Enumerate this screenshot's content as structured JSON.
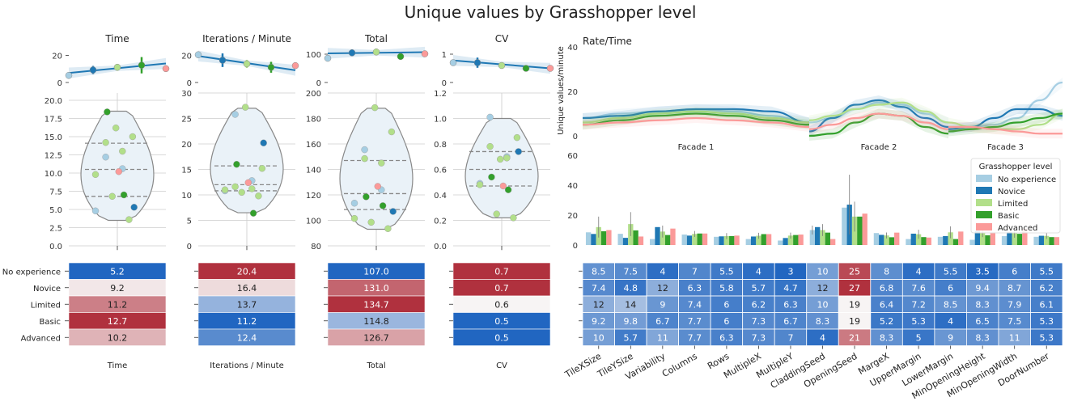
{
  "figure": {
    "suptitle": "Unique values by Grasshopper level"
  },
  "levels": [
    "No experience",
    "Novice",
    "Limited",
    "Basic",
    "Advanced"
  ],
  "colors": {
    "No experience": "#a6cee3",
    "Novice": "#1f78b4",
    "Limited": "#b2df8a",
    "Basic": "#33a02c",
    "Advanced": "#fb9a99",
    "heat_low": "#2166c1",
    "heat_mid": "#f7f4f4",
    "heat_high": "#b0313e"
  },
  "chart_data": [
    {
      "id": "time",
      "type": "line",
      "title": "Time",
      "xlabel": "Time",
      "top_ylim": [
        0,
        25
      ],
      "top_yticks": [
        "0",
        "20"
      ],
      "top_points": [
        5.2,
        9.2,
        11.2,
        12.7,
        10.2
      ],
      "top_errors": [
        0,
        3,
        2.5,
        6,
        0
      ],
      "trend": [
        7.0,
        14.0
      ],
      "violin_ylim": [
        0,
        21
      ],
      "violin_yticks": [
        "0.0",
        "2.5",
        "5.0",
        "7.5",
        "10.0",
        "12.5",
        "15.0",
        "17.5",
        "20.0"
      ],
      "violin_ytick_values": [
        0,
        2.5,
        5,
        7.5,
        10,
        12.5,
        15,
        17.5,
        20
      ],
      "violin_range": [
        3.5,
        18.5
      ],
      "quartiles": [
        6.8,
        10.5,
        14.1
      ],
      "strip": [
        {
          "level": "No experience",
          "values": [
            4.8,
            10.6,
            12.2
          ]
        },
        {
          "level": "Novice",
          "values": [
            5.3
          ]
        },
        {
          "level": "Limited",
          "values": [
            3.6,
            6.8,
            9.8,
            13.0,
            14.2,
            15.0,
            16.2
          ]
        },
        {
          "level": "Basic",
          "values": [
            7.0,
            18.4
          ]
        },
        {
          "level": "Advanced",
          "values": [
            10.2
          ]
        }
      ],
      "heat_values": [
        "5.2",
        "9.2",
        "11.2",
        "12.7",
        "10.2"
      ],
      "heat_numeric": [
        5.2,
        9.2,
        11.2,
        12.7,
        10.2
      ]
    },
    {
      "id": "iter",
      "type": "line",
      "title": "Iterations / Minute",
      "xlabel": "Iterations / Minute",
      "top_ylim": [
        0,
        25
      ],
      "top_yticks": [
        "0",
        "20"
      ],
      "top_points": [
        20.4,
        16.4,
        13.7,
        11.2,
        12.4
      ],
      "top_errors": [
        0,
        5,
        3,
        4,
        0
      ],
      "trend": [
        19.5,
        9.0
      ],
      "violin_ylim": [
        0,
        30
      ],
      "violin_yticks": [
        "0",
        "5",
        "10",
        "15",
        "20",
        "25",
        "30"
      ],
      "violin_ytick_values": [
        0,
        5,
        10,
        15,
        20,
        25,
        30
      ],
      "violin_range": [
        6.5,
        27
      ],
      "quartiles": [
        10.8,
        12.0,
        15.7
      ],
      "strip": [
        {
          "level": "No experience",
          "values": [
            10.8,
            12.8,
            25.8
          ]
        },
        {
          "level": "Novice",
          "values": [
            20.2
          ]
        },
        {
          "level": "Limited",
          "values": [
            9.8,
            10.5,
            11.0,
            11.2,
            11.6,
            15.2,
            27.2
          ]
        },
        {
          "level": "Basic",
          "values": [
            6.4,
            16.0
          ]
        },
        {
          "level": "Advanced",
          "values": [
            12.4
          ]
        }
      ],
      "heat_values": [
        "20.4",
        "16.4",
        "13.7",
        "11.2",
        "12.4"
      ],
      "heat_numeric": [
        20.4,
        16.4,
        13.7,
        11.2,
        12.4
      ]
    },
    {
      "id": "total",
      "type": "line",
      "title": "Total",
      "xlabel": "Total",
      "top_ylim": [
        0,
        120
      ],
      "top_yticks": [
        "0",
        "100"
      ],
      "top_points": [
        107.0,
        131.0,
        134.7,
        114.8,
        126.7
      ],
      "top_errors": [
        0,
        12,
        12,
        0,
        0
      ],
      "trend": [
        103,
        107
      ],
      "top_scale": 0.8,
      "violin_ylim": [
        80,
        200
      ],
      "violin_yticks": [
        "80",
        "100",
        "120",
        "140",
        "160",
        "180",
        "200"
      ],
      "violin_ytick_values": [
        80,
        100,
        120,
        140,
        160,
        180,
        200
      ],
      "violin_range": [
        93,
        188
      ],
      "quartiles": [
        108.5,
        121,
        147
      ],
      "strip": [
        {
          "level": "No experience",
          "values": [
            113.5,
            124.0,
            155.5
          ]
        },
        {
          "level": "Novice",
          "values": [
            107.0
          ]
        },
        {
          "level": "Limited",
          "values": [
            93.5,
            98.5,
            101.5,
            145.0,
            148.5,
            169.5,
            188.5
          ]
        },
        {
          "level": "Basic",
          "values": [
            111.5,
            118.5
          ]
        },
        {
          "level": "Advanced",
          "values": [
            126.7
          ]
        }
      ],
      "heat_values": [
        "107.0",
        "131.0",
        "134.7",
        "114.8",
        "126.7"
      ],
      "heat_numeric": [
        107.0,
        131.0,
        134.7,
        114.8,
        126.7
      ]
    },
    {
      "id": "cv",
      "type": "line",
      "title": "CV",
      "xlabel": "CV",
      "top_ylim": [
        0,
        1.2
      ],
      "top_yticks": [
        "0",
        "1"
      ],
      "top_points": [
        0.7,
        0.7,
        0.6,
        0.5,
        0.5
      ],
      "top_errors": [
        0,
        0.18,
        0.1,
        0,
        0
      ],
      "trend": [
        0.78,
        0.5
      ],
      "violin_ylim": [
        0,
        1.2
      ],
      "violin_yticks": [
        "0.0",
        "0.2",
        "0.4",
        "0.6",
        "0.8",
        "1.0",
        "1.2"
      ],
      "violin_ytick_values": [
        0,
        0.2,
        0.4,
        0.6,
        0.8,
        1.0,
        1.2
      ],
      "violin_range": [
        0.22,
        1.0
      ],
      "quartiles": [
        0.47,
        0.6,
        0.74
      ],
      "strip": [
        {
          "level": "No experience",
          "values": [
            0.49,
            0.7,
            1.01
          ]
        },
        {
          "level": "Novice",
          "values": [
            0.74
          ]
        },
        {
          "level": "Limited",
          "values": [
            0.22,
            0.25,
            0.48,
            0.69,
            0.78,
            0.85,
            0.68
          ]
        },
        {
          "level": "Basic",
          "values": [
            0.44,
            0.54
          ]
        },
        {
          "level": "Advanced",
          "values": [
            0.47
          ]
        }
      ],
      "heat_values": [
        "0.7",
        "0.7",
        "0.6",
        "0.5",
        "0.5"
      ],
      "heat_numeric": [
        0.7,
        0.7,
        0.6,
        0.5,
        0.5
      ]
    },
    {
      "id": "ratetime",
      "type": "line",
      "title": "Rate/Time",
      "ylabel": "Unique values/minute",
      "ylim": [
        0,
        40
      ],
      "yticks": [
        0,
        20,
        40
      ],
      "facades": [
        "Facade 1",
        "Facade 2",
        "Facade 3"
      ],
      "series": [
        {
          "name": "No experience",
          "f1": [
            8,
            10,
            11,
            12,
            11,
            9,
            6
          ],
          "f2": [
            6,
            8,
            12,
            15,
            14,
            10,
            6
          ],
          "f3": [
            4,
            4,
            5,
            8,
            16,
            24
          ]
        },
        {
          "name": "Novice",
          "f1": [
            8,
            9,
            11,
            12,
            12,
            11,
            6
          ],
          "f2": [
            2,
            8,
            14,
            16,
            13,
            8,
            4
          ],
          "f3": [
            3,
            4,
            8,
            12,
            12,
            9
          ]
        },
        {
          "name": "Limited",
          "f1": [
            6,
            8,
            10,
            11,
            10,
            8,
            6
          ],
          "f2": [
            7,
            9,
            12,
            14,
            15,
            11,
            6
          ],
          "f3": [
            6,
            4,
            3,
            3,
            5,
            10
          ]
        },
        {
          "name": "Basic",
          "f1": [
            5,
            7,
            9,
            10,
            9,
            7,
            5
          ],
          "f2": [
            0,
            1,
            6,
            10,
            9,
            4,
            1
          ],
          "f3": [
            2,
            3,
            4,
            6,
            8,
            10
          ]
        },
        {
          "name": "Advanced",
          "f1": [
            5,
            6,
            7,
            8,
            7,
            6,
            4
          ],
          "f2": [
            3,
            5,
            8,
            10,
            9,
            6,
            3
          ],
          "f3": [
            4,
            4,
            3,
            2,
            1,
            1
          ]
        }
      ]
    },
    {
      "id": "params_bar",
      "type": "bar",
      "ylim": [
        0,
        60
      ],
      "yticks": [
        0,
        20,
        40,
        60
      ],
      "legend_title": "Grasshopper level",
      "legend_position": "upper-right",
      "categories": [
        "TileXSize",
        "TileYSize",
        "Variability",
        "Columns",
        "Rows",
        "MultipleX",
        "MultipleY",
        "CladdingSeed",
        "OpeningSeed",
        "MargeX",
        "UpperMargin",
        "LowerMargin",
        "MinOpeningHeight",
        "MinOpeningWidth",
        "DoorNumber"
      ],
      "series": [
        {
          "name": "No experience",
          "values": [
            8.5,
            7.5,
            4,
            7,
            5.5,
            4,
            3,
            10,
            25,
            8,
            4,
            5.5,
            3.5,
            6,
            5.5
          ],
          "errors": [
            0,
            0,
            0,
            0,
            0,
            0,
            0,
            3,
            0,
            0,
            0,
            0,
            0,
            0,
            0
          ]
        },
        {
          "name": "Novice",
          "values": [
            7.4,
            4.8,
            12,
            6.3,
            5.8,
            5.7,
            4.7,
            12,
            27,
            6.8,
            7.6,
            6,
            9.4,
            8.7,
            6.2
          ],
          "errors": [
            0,
            0,
            0,
            0,
            0,
            0,
            0,
            0,
            20,
            0,
            0,
            0,
            0,
            0,
            0
          ]
        },
        {
          "name": "Limited",
          "values": [
            12,
            14,
            9,
            7.4,
            6,
            6.2,
            6.3,
            10,
            19,
            6.4,
            7.2,
            8.5,
            8.3,
            7.9,
            6.1
          ],
          "errors": [
            7,
            8,
            4,
            2,
            2,
            2,
            2,
            4,
            10,
            2,
            3,
            4,
            3,
            3,
            2
          ]
        },
        {
          "name": "Basic",
          "values": [
            9.2,
            9.8,
            6.7,
            7.7,
            6,
            7.3,
            6.7,
            8.3,
            19,
            5.2,
            5.3,
            4,
            6.5,
            7.5,
            5.3
          ],
          "errors": [
            0,
            0,
            0,
            0,
            0,
            0,
            0,
            0,
            0,
            0,
            0,
            0,
            0,
            0,
            0
          ]
        },
        {
          "name": "Advanced",
          "values": [
            10,
            5.7,
            11,
            7.7,
            6.3,
            7.3,
            7,
            4,
            21,
            8.3,
            5,
            9,
            8.3,
            11,
            5.3
          ],
          "errors": [
            0,
            0,
            0,
            0,
            0,
            0,
            0,
            0,
            0,
            0,
            0,
            0,
            0,
            0,
            0
          ]
        }
      ]
    },
    {
      "id": "params_heat",
      "type": "heatmap",
      "rows": [
        "No experience",
        "Novice",
        "Limited",
        "Basic",
        "Advanced"
      ],
      "columns": [
        "TileXSize",
        "TileYSize",
        "Variability",
        "Columns",
        "Rows",
        "MultipleX",
        "MultipleY",
        "CladdingSeed",
        "OpeningSeed",
        "MargeX",
        "UpperMargin",
        "LowerMargin",
        "MinOpeningHeight",
        "MinOpeningWidth",
        "DoorNumber"
      ],
      "labels": [
        [
          "8.5",
          "7.5",
          "4",
          "7",
          "5.5",
          "4",
          "3",
          "10",
          "25",
          "8",
          "4",
          "5.5",
          "3.5",
          "6",
          "5.5"
        ],
        [
          "7.4",
          "4.8",
          "12",
          "6.3",
          "5.8",
          "5.7",
          "4.7",
          "12",
          "27",
          "6.8",
          "7.6",
          "6",
          "9.4",
          "8.7",
          "6.2"
        ],
        [
          "12",
          "14",
          "9",
          "7.4",
          "6",
          "6.2",
          "6.3",
          "10",
          "19",
          "6.4",
          "7.2",
          "8.5",
          "8.3",
          "7.9",
          "6.1"
        ],
        [
          "9.2",
          "9.8",
          "6.7",
          "7.7",
          "6",
          "7.3",
          "6.7",
          "8.3",
          "19",
          "5.2",
          "5.3",
          "4",
          "6.5",
          "7.5",
          "5.3"
        ],
        [
          "10",
          "5.7",
          "11",
          "7.7",
          "6.3",
          "7.3",
          "7",
          "4",
          "21",
          "8.3",
          "5",
          "9",
          "8.3",
          "11",
          "5.3"
        ]
      ],
      "value_range": [
        3,
        27
      ]
    }
  ]
}
